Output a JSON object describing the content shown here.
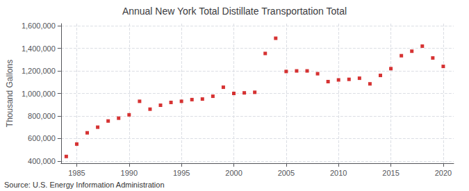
{
  "chart_data": {
    "type": "scatter",
    "title": "Annual New York Total Distillate Transportation Total",
    "ylabel": "Thousand Gallons",
    "annotations": [
      "Source: U.S. Energy Information Administration"
    ],
    "x": [
      1984,
      1985,
      1986,
      1987,
      1988,
      1989,
      1990,
      1991,
      1992,
      1993,
      1994,
      1995,
      1996,
      1997,
      1998,
      1999,
      2000,
      2001,
      2002,
      2003,
      2004,
      2005,
      2006,
      2007,
      2008,
      2009,
      2010,
      2011,
      2012,
      2013,
      2014,
      2015,
      2016,
      2017,
      2018,
      2019,
      2020
    ],
    "values": [
      440000,
      550000,
      650000,
      700000,
      755000,
      780000,
      810000,
      930000,
      860000,
      895000,
      920000,
      930000,
      945000,
      950000,
      975000,
      1055000,
      1000000,
      1005000,
      1010000,
      1355000,
      1490000,
      1195000,
      1200000,
      1200000,
      1175000,
      1105000,
      1120000,
      1125000,
      1135000,
      1085000,
      1160000,
      1220000,
      1335000,
      1375000,
      1420000,
      1315000,
      1240000
    ],
    "color": "#cc0000",
    "marker": "square",
    "xlim": [
      1983.5,
      2021
    ],
    "xticks": [
      1985,
      1990,
      1995,
      2000,
      2005,
      2010,
      2015,
      2020
    ],
    "ylim": [
      380000,
      1620000
    ],
    "yticks": [
      {
        "value": 400000,
        "label": "400,000"
      },
      {
        "value": 600000,
        "label": "600,000"
      },
      {
        "value": 800000,
        "label": "800,000"
      },
      {
        "value": 1000000,
        "label": "1,000,000"
      },
      {
        "value": 1200000,
        "label": "1,200,000"
      },
      {
        "value": 1400000,
        "label": "1,400,000"
      },
      {
        "value": 1600000,
        "label": "1,600,000"
      }
    ],
    "grid": true
  }
}
